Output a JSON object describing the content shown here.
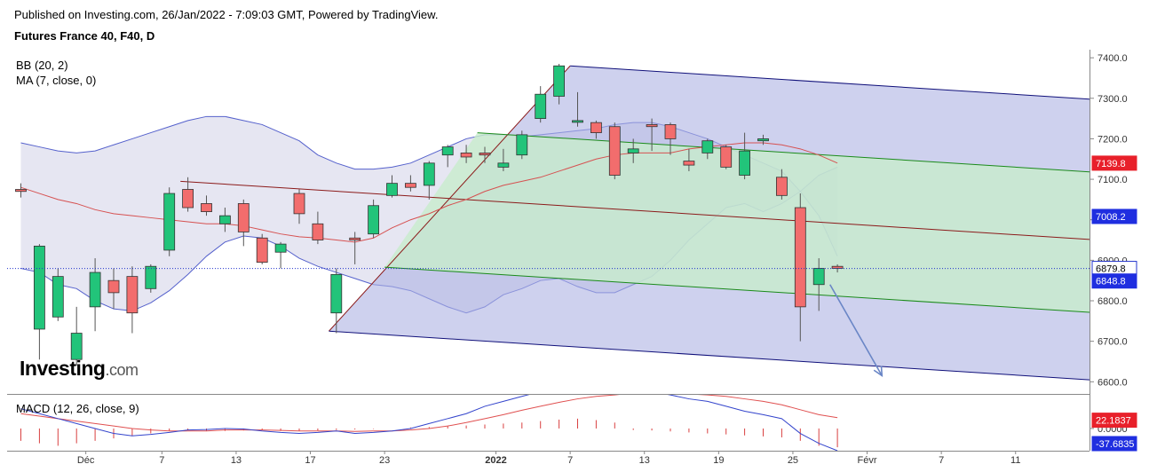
{
  "header": {
    "published": "Published on Investing.com, 26/Jan/2022 - 7:09:03 GMT, Powered by TradingView.",
    "instrument": "Futures France 40, F40, D"
  },
  "indicators": {
    "bb": "BB (20, 2)",
    "ma": "MA (7, close, 0)",
    "macd": "MACD (12, 26, close, 9)"
  },
  "logo": {
    "main": "Investing",
    "suffix": ".com"
  },
  "colors": {
    "up": "#22c47a",
    "down": "#f26d6d",
    "bb_band": "#5561cc",
    "bb_fill": "#e6e6f2",
    "ma": "#d65151",
    "pitch_outer": "#aeb2e2",
    "pitch_inner": "#c8eccc",
    "pitch_median": "#8b1a1a",
    "pitch_green": "#1a8a1a",
    "pitch_blue": "#10107a",
    "arrow": "#6a86c6",
    "macd_hist": "#d94040",
    "macd_line": "#3344cc",
    "macd_signal": "#e05050"
  },
  "chart_data": {
    "type": "candlestick",
    "price_axis": {
      "ticks": [
        "7400.0",
        "7300.0",
        "7200.0",
        "7100.0",
        "7000.0",
        "6900.0",
        "6800.0",
        "6700.0",
        "6600.0"
      ],
      "ylim": [
        6570,
        7420
      ]
    },
    "price_badges": [
      {
        "label": "7139.8",
        "value": 7139.8,
        "color": "#e8202a"
      },
      {
        "label": "7008.2",
        "value": 7008.2,
        "color": "#1f2ee0"
      },
      {
        "label": "6879.8",
        "value": 6879.8,
        "color": "#ffffff"
      },
      {
        "label": "6848.8",
        "value": 6848.8,
        "color": "#1f2ee0"
      }
    ],
    "macd_axis": {
      "ticks": [
        "0.0000"
      ],
      "ylim": [
        -45,
        70
      ]
    },
    "macd_badges": [
      {
        "label": "22.1837",
        "value": 22.1837,
        "color": "#e8202a"
      },
      {
        "label": "-37.6835",
        "value": -37.6835,
        "color": "#1f2ee0"
      }
    ],
    "x_ticks": [
      {
        "label": "Déc",
        "bar": 3.5,
        "bold": false
      },
      {
        "label": "7",
        "bar": 7.6,
        "bold": false
      },
      {
        "label": "13",
        "bar": 11.6,
        "bold": false
      },
      {
        "label": "17",
        "bar": 15.6,
        "bold": false
      },
      {
        "label": "23",
        "bar": 19.6,
        "bold": false
      },
      {
        "label": "2022",
        "bar": 25.6,
        "bold": true
      },
      {
        "label": "7",
        "bar": 29.6,
        "bold": false
      },
      {
        "label": "13",
        "bar": 33.6,
        "bold": false
      },
      {
        "label": "19",
        "bar": 37.6,
        "bold": false
      },
      {
        "label": "25",
        "bar": 41.6,
        "bold": false
      },
      {
        "label": "Févr",
        "bar": 45.6,
        "bold": false
      },
      {
        "label": "7",
        "bar": 49.6,
        "bold": false
      },
      {
        "label": "11",
        "bar": 53.6,
        "bold": false
      }
    ],
    "candles": [
      {
        "o": 7075,
        "h": 7090,
        "l": 7055,
        "c": 7070
      },
      {
        "o": 6730,
        "h": 6940,
        "l": 6655,
        "c": 6935
      },
      {
        "o": 6760,
        "h": 6880,
        "l": 6750,
        "c": 6860
      },
      {
        "o": 6655,
        "h": 6785,
        "l": 6640,
        "c": 6720
      },
      {
        "o": 6785,
        "h": 6905,
        "l": 6725,
        "c": 6870
      },
      {
        "o": 6850,
        "h": 6880,
        "l": 6780,
        "c": 6820
      },
      {
        "o": 6860,
        "h": 6885,
        "l": 6720,
        "c": 6770
      },
      {
        "o": 6830,
        "h": 6890,
        "l": 6820,
        "c": 6885
      },
      {
        "o": 6925,
        "h": 7080,
        "l": 6910,
        "c": 7065
      },
      {
        "o": 7075,
        "h": 7105,
        "l": 7020,
        "c": 7030
      },
      {
        "o": 7040,
        "h": 7060,
        "l": 7010,
        "c": 7020
      },
      {
        "o": 6990,
        "h": 7030,
        "l": 6970,
        "c": 7010
      },
      {
        "o": 7040,
        "h": 7050,
        "l": 6935,
        "c": 6970
      },
      {
        "o": 6955,
        "h": 6965,
        "l": 6890,
        "c": 6895
      },
      {
        "o": 6920,
        "h": 6945,
        "l": 6880,
        "c": 6940
      },
      {
        "o": 7065,
        "h": 7075,
        "l": 6990,
        "c": 7015
      },
      {
        "o": 6990,
        "h": 7020,
        "l": 6940,
        "c": 6950
      },
      {
        "o": 6770,
        "h": 6880,
        "l": 6720,
        "c": 6865
      },
      {
        "o": 6955,
        "h": 6970,
        "l": 6890,
        "c": 6950
      },
      {
        "o": 6965,
        "h": 7050,
        "l": 6955,
        "c": 7035
      },
      {
        "o": 7060,
        "h": 7110,
        "l": 7055,
        "c": 7090
      },
      {
        "o": 7090,
        "h": 7110,
        "l": 7070,
        "c": 7080
      },
      {
        "o": 7085,
        "h": 7145,
        "l": 7050,
        "c": 7140
      },
      {
        "o": 7160,
        "h": 7185,
        "l": 7130,
        "c": 7180
      },
      {
        "o": 7165,
        "h": 7185,
        "l": 7140,
        "c": 7155
      },
      {
        "o": 7165,
        "h": 7180,
        "l": 7140,
        "c": 7160
      },
      {
        "o": 7130,
        "h": 7175,
        "l": 7120,
        "c": 7140
      },
      {
        "o": 7160,
        "h": 7220,
        "l": 7150,
        "c": 7210
      },
      {
        "o": 7250,
        "h": 7330,
        "l": 7240,
        "c": 7310
      },
      {
        "o": 7305,
        "h": 7385,
        "l": 7285,
        "c": 7380
      },
      {
        "o": 7245,
        "h": 7315,
        "l": 7230,
        "c": 7245
      },
      {
        "o": 7240,
        "h": 7245,
        "l": 7200,
        "c": 7215
      },
      {
        "o": 7230,
        "h": 7240,
        "l": 7100,
        "c": 7110
      },
      {
        "o": 7165,
        "h": 7200,
        "l": 7140,
        "c": 7175
      },
      {
        "o": 7235,
        "h": 7250,
        "l": 7170,
        "c": 7230
      },
      {
        "o": 7235,
        "h": 7240,
        "l": 7160,
        "c": 7200
      },
      {
        "o": 7145,
        "h": 7175,
        "l": 7120,
        "c": 7135
      },
      {
        "o": 7165,
        "h": 7200,
        "l": 7150,
        "c": 7195
      },
      {
        "o": 7180,
        "h": 7185,
        "l": 7125,
        "c": 7130
      },
      {
        "o": 7110,
        "h": 7215,
        "l": 7100,
        "c": 7170
      },
      {
        "o": 7195,
        "h": 7210,
        "l": 7185,
        "c": 7200
      },
      {
        "o": 7105,
        "h": 7125,
        "l": 7050,
        "c": 7060
      },
      {
        "o": 7030,
        "h": 7065,
        "l": 6700,
        "c": 6785
      },
      {
        "o": 6840,
        "h": 6905,
        "l": 6775,
        "c": 6880
      },
      {
        "o": 6885,
        "h": 6890,
        "l": 6870,
        "c": 6880
      }
    ],
    "bollinger_upper": [
      7190,
      7180,
      7170,
      7165,
      7170,
      7185,
      7200,
      7215,
      7230,
      7245,
      7255,
      7255,
      7245,
      7235,
      7215,
      7195,
      7160,
      7140,
      7125,
      7125,
      7130,
      7140,
      7160,
      7180,
      7200,
      7210,
      7210,
      7205,
      7210,
      7215,
      7220,
      7225,
      7235,
      7240,
      7240,
      7230,
      7215,
      7200,
      7180,
      7160,
      7140,
      7120,
      7070,
      7010,
      6910
    ],
    "bollinger_lower": [
      6880,
      6870,
      6840,
      6830,
      6800,
      6780,
      6775,
      6795,
      6825,
      6865,
      6910,
      6945,
      6960,
      6955,
      6935,
      6905,
      6885,
      6870,
      6855,
      6840,
      6835,
      6825,
      6805,
      6785,
      6770,
      6785,
      6815,
      6830,
      6850,
      6855,
      6835,
      6820,
      6820,
      6840,
      6860,
      6900,
      6950,
      6990,
      7030,
      7040,
      7020,
      7040,
      7070,
      7110,
      7130
    ],
    "moving_average": [
      7080,
      7065,
      7050,
      7040,
      7025,
      7015,
      7010,
      7005,
      7000,
      6995,
      6990,
      6990,
      6985,
      6975,
      6965,
      6958,
      6955,
      6950,
      6945,
      6955,
      6980,
      7000,
      7015,
      7035,
      7050,
      7070,
      7085,
      7095,
      7105,
      7120,
      7135,
      7150,
      7160,
      7165,
      7165,
      7165,
      7175,
      7180,
      7185,
      7190,
      7190,
      7185,
      7175,
      7160,
      7140
    ],
    "pitchfork": {
      "anchor_a": {
        "bar": 8.6,
        "price": 7095
      },
      "anchor_b": {
        "bar": 29.6,
        "price": 7380
      },
      "anchor_c": {
        "bar": 16.6,
        "price": 6725
      },
      "inner_b": {
        "bar": 19.6,
        "price": 6883
      },
      "inner_c": {
        "bar": 24.6,
        "price": 7215
      }
    },
    "arrow": {
      "from": {
        "bar": 43.6,
        "price": 6840
      },
      "to": {
        "bar": 46.4,
        "price": 6615
      }
    },
    "macd_histogram": [
      -25,
      -30,
      -35,
      -30,
      -25,
      -20,
      -15,
      -10,
      -5,
      -3,
      -5,
      -5,
      -4,
      -3,
      -5,
      -5,
      -4,
      -3,
      -2,
      -1,
      0,
      2,
      3,
      5,
      6,
      8,
      10,
      12,
      15,
      18,
      20,
      17,
      12,
      -3,
      -4,
      -6,
      -8,
      -10,
      -12,
      -14,
      -16,
      -18,
      -25,
      -35,
      -38
    ],
    "macd_line": [
      40,
      30,
      20,
      10,
      0,
      -10,
      -15,
      -12,
      -8,
      -3,
      -2,
      0,
      -1,
      -5,
      -8,
      -10,
      -8,
      -5,
      -10,
      -8,
      -5,
      0,
      10,
      20,
      30,
      45,
      55,
      65,
      75,
      85,
      90,
      90,
      85,
      80,
      75,
      68,
      60,
      55,
      45,
      35,
      28,
      20,
      -10,
      -30,
      -45
    ],
    "macd_signal": [
      30,
      25,
      20,
      15,
      10,
      5,
      0,
      -3,
      -5,
      -5,
      -5,
      -3,
      -3,
      -3,
      -4,
      -5,
      -5,
      -5,
      -6,
      -5,
      -5,
      -3,
      0,
      5,
      12,
      20,
      28,
      37,
      45,
      53,
      60,
      65,
      68,
      72,
      72,
      72,
      70,
      68,
      65,
      60,
      55,
      48,
      38,
      28,
      22
    ]
  }
}
